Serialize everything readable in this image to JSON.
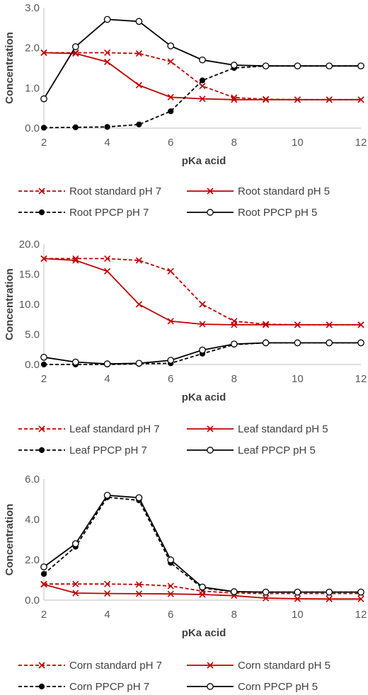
{
  "chart_data": [
    {
      "type": "line",
      "xlabel": "pKa acid",
      "ylabel": "Concentration",
      "xlim": [
        2,
        12
      ],
      "ylim": [
        0,
        3.0
      ],
      "x_ticks": [
        "2",
        "4",
        "6",
        "8",
        "10",
        "12"
      ],
      "y_ticks": [
        "0.0",
        "1.0",
        "2.0",
        "3.0"
      ],
      "x": [
        2,
        3,
        4,
        5,
        6,
        7,
        8,
        9,
        10,
        11,
        12
      ],
      "legend_position": "bottom",
      "series": [
        {
          "name": "Root standard pH 7",
          "color": "#c00000",
          "dash": "dashed",
          "marker": "x",
          "values": [
            1.88,
            1.88,
            1.88,
            1.86,
            1.66,
            1.05,
            0.76,
            0.72,
            0.71,
            0.71,
            0.71
          ]
        },
        {
          "name": "Root standard pH 5",
          "color": "#c00000",
          "dash": "solid",
          "marker": "x",
          "values": [
            1.88,
            1.86,
            1.65,
            1.07,
            0.77,
            0.73,
            0.71,
            0.71,
            0.71,
            0.71,
            0.71
          ]
        },
        {
          "name": "Root PPCP pH 7",
          "color": "#000000",
          "dash": "dashed",
          "marker": "filled-circle",
          "values": [
            0.01,
            0.02,
            0.03,
            0.09,
            0.42,
            1.19,
            1.5,
            1.55,
            1.55,
            1.55,
            1.55
          ]
        },
        {
          "name": "Root PPCP pH 5",
          "color": "#000000",
          "dash": "solid",
          "marker": "open-circle",
          "values": [
            0.73,
            2.03,
            2.71,
            2.66,
            2.05,
            1.7,
            1.57,
            1.55,
            1.55,
            1.55,
            1.55
          ]
        }
      ]
    },
    {
      "type": "line",
      "xlabel": "pKa acid",
      "ylabel": "Concentration",
      "xlim": [
        2,
        12
      ],
      "ylim": [
        0,
        20.0
      ],
      "x_ticks": [
        "2",
        "4",
        "6",
        "8",
        "10",
        "12"
      ],
      "y_ticks": [
        "0.0",
        "5.0",
        "10.0",
        "15.0",
        "20.0"
      ],
      "x": [
        2,
        3,
        4,
        5,
        6,
        7,
        8,
        9,
        10,
        11,
        12
      ],
      "legend_position": "bottom",
      "series": [
        {
          "name": "Leaf standard pH 7",
          "color": "#c00000",
          "dash": "dashed",
          "marker": "x",
          "values": [
            17.6,
            17.6,
            17.6,
            17.3,
            15.5,
            10.0,
            7.2,
            6.7,
            6.6,
            6.6,
            6.6
          ]
        },
        {
          "name": "Leaf standard pH 5",
          "color": "#c00000",
          "dash": "solid",
          "marker": "x",
          "values": [
            17.6,
            17.3,
            15.5,
            10.0,
            7.2,
            6.7,
            6.6,
            6.6,
            6.6,
            6.6,
            6.6
          ]
        },
        {
          "name": "Leaf PPCP pH 7",
          "color": "#000000",
          "dash": "dashed",
          "marker": "filled-circle",
          "values": [
            0.0,
            0.0,
            0.0,
            0.1,
            0.2,
            1.8,
            3.3,
            3.6,
            3.6,
            3.6,
            3.6
          ]
        },
        {
          "name": "Leaf PPCP pH 5",
          "color": "#000000",
          "dash": "solid",
          "marker": "open-circle",
          "values": [
            1.2,
            0.4,
            0.1,
            0.2,
            0.7,
            2.4,
            3.4,
            3.6,
            3.6,
            3.6,
            3.6
          ]
        }
      ]
    },
    {
      "type": "line",
      "xlabel": "pKa acid",
      "ylabel": "Concentration",
      "xlim": [
        2,
        12
      ],
      "ylim": [
        0,
        6.0
      ],
      "x_ticks": [
        "2",
        "4",
        "6",
        "8",
        "10",
        "12"
      ],
      "y_ticks": [
        "0.0",
        "2.0",
        "4.0",
        "6.0"
      ],
      "x": [
        2,
        3,
        4,
        5,
        6,
        7,
        8,
        9,
        10,
        11,
        12
      ],
      "legend_position": "bottom",
      "series": [
        {
          "name": "Corn standard pH 7",
          "color": "#c00000",
          "dash": "dashed",
          "marker": "x",
          "values": [
            0.8,
            0.8,
            0.8,
            0.78,
            0.7,
            0.45,
            0.35,
            0.33,
            0.33,
            0.33,
            0.33
          ]
        },
        {
          "name": "Corn standard pH 5",
          "color": "#c00000",
          "dash": "solid",
          "marker": "x",
          "values": [
            0.78,
            0.35,
            0.33,
            0.32,
            0.31,
            0.28,
            0.22,
            0.1,
            0.07,
            0.06,
            0.06
          ]
        },
        {
          "name": "Corn PPCP pH 7",
          "color": "#000000",
          "dash": "dashed",
          "marker": "filled-circle",
          "values": [
            1.3,
            2.65,
            5.1,
            4.95,
            1.85,
            0.6,
            0.42,
            0.4,
            0.4,
            0.4,
            0.4
          ]
        },
        {
          "name": "Corn PPCP pH 5",
          "color": "#000000",
          "dash": "solid",
          "marker": "open-circle",
          "values": [
            1.65,
            2.8,
            5.2,
            5.08,
            2.0,
            0.65,
            0.42,
            0.4,
            0.4,
            0.4,
            0.4
          ]
        }
      ]
    }
  ]
}
